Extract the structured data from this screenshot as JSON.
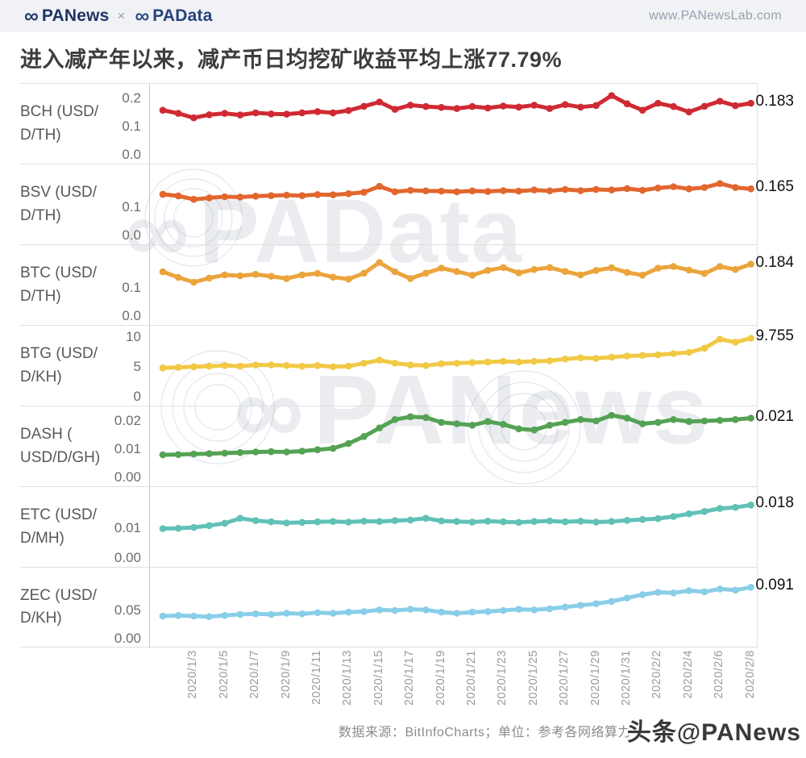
{
  "topbar": {
    "logo_panews": "PANews",
    "separator": "×",
    "logo_padata": "PAData",
    "url": "www.PANewsLab.com",
    "logo_icon": "infinity-icon"
  },
  "title": "进入减产年以来，减产币日均挖矿收益平均上涨77.79%",
  "footer": {
    "text": "数据来源：BitInfoCharts；单位：参考各网络算力"
  },
  "watermarks": {
    "padata": "PAData",
    "panews": "PANews",
    "toutiao": "头条@PANews"
  },
  "chart_data": {
    "type": "line",
    "title": "进入减产年以来，减产币日均挖矿收益平均上涨77.79%",
    "average_increase": "77.79%",
    "x_dates": [
      "2020/1/1",
      "2020/1/2",
      "2020/1/3",
      "2020/1/4",
      "2020/1/5",
      "2020/1/6",
      "2020/1/7",
      "2020/1/8",
      "2020/1/9",
      "2020/1/10",
      "2020/1/11",
      "2020/1/12",
      "2020/1/13",
      "2020/1/14",
      "2020/1/15",
      "2020/1/16",
      "2020/1/17",
      "2020/1/18",
      "2020/1/19",
      "2020/1/20",
      "2020/1/21",
      "2020/1/22",
      "2020/1/23",
      "2020/1/24",
      "2020/1/25",
      "2020/1/26",
      "2020/1/27",
      "2020/1/28",
      "2020/1/29",
      "2020/1/30",
      "2020/1/31",
      "2020/2/1",
      "2020/2/2",
      "2020/2/3",
      "2020/2/4",
      "2020/2/5",
      "2020/2/6",
      "2020/2/7",
      "2020/2/8"
    ],
    "x_tick_labels": [
      "2020/1/3",
      "2020/1/5",
      "2020/1/7",
      "2020/1/9",
      "2020/1/11",
      "2020/1/13",
      "2020/1/15",
      "2020/1/17",
      "2020/1/19",
      "2020/1/21",
      "2020/1/23",
      "2020/1/25",
      "2020/1/27",
      "2020/1/29",
      "2020/1/31",
      "2020/2/2",
      "2020/2/4",
      "2020/2/6",
      "2020/2/8"
    ],
    "series": [
      {
        "name": "BCH",
        "label": "BCH (USD/D/TH)",
        "label_lines": [
          "BCH (USD/",
          "D/TH)"
        ],
        "unit": "USD/D/TH",
        "color": "#cf2a33",
        "end_label": "0.183",
        "axis_ticks": [
          "0.2",
          "0.1",
          "0.0"
        ],
        "axis_max": 0.24,
        "values": [
          0.158,
          0.147,
          0.131,
          0.142,
          0.147,
          0.141,
          0.149,
          0.145,
          0.144,
          0.149,
          0.153,
          0.149,
          0.157,
          0.172,
          0.187,
          0.161,
          0.176,
          0.171,
          0.168,
          0.164,
          0.171,
          0.166,
          0.173,
          0.169,
          0.176,
          0.164,
          0.178,
          0.169,
          0.175,
          0.21,
          0.181,
          0.158,
          0.183,
          0.171,
          0.152,
          0.172,
          0.19,
          0.174,
          0.183
        ]
      },
      {
        "name": "BSV",
        "label": "BSV (USD/D/TH)",
        "label_lines": [
          "BSV (USD/",
          "D/TH)"
        ],
        "unit": "USD/D/TH",
        "color": "#e2662d",
        "end_label": "0.165",
        "axis_ticks": [
          "0.1",
          "0.0"
        ],
        "axis_max": 0.24,
        "values": [
          0.146,
          0.14,
          0.128,
          0.133,
          0.137,
          0.136,
          0.139,
          0.141,
          0.143,
          0.141,
          0.145,
          0.144,
          0.148,
          0.153,
          0.174,
          0.155,
          0.16,
          0.158,
          0.157,
          0.155,
          0.158,
          0.156,
          0.159,
          0.157,
          0.161,
          0.158,
          0.163,
          0.159,
          0.163,
          0.161,
          0.166,
          0.16,
          0.168,
          0.173,
          0.165,
          0.17,
          0.184,
          0.17,
          0.165
        ]
      },
      {
        "name": "BTC",
        "label": "BTC (USD/D/TH)",
        "label_lines": [
          "BTC (USD/",
          "D/TH)"
        ],
        "unit": "USD/D/TH",
        "color": "#eba43c",
        "end_label": "0.184",
        "axis_ticks": [
          "0.1",
          "0.0"
        ],
        "axis_max": 0.24,
        "values": [
          0.157,
          0.137,
          0.12,
          0.135,
          0.146,
          0.143,
          0.148,
          0.141,
          0.133,
          0.146,
          0.151,
          0.138,
          0.131,
          0.152,
          0.19,
          0.157,
          0.133,
          0.152,
          0.17,
          0.158,
          0.145,
          0.162,
          0.172,
          0.153,
          0.165,
          0.172,
          0.158,
          0.146,
          0.162,
          0.171,
          0.155,
          0.145,
          0.17,
          0.176,
          0.163,
          0.151,
          0.176,
          0.165,
          0.184
        ]
      },
      {
        "name": "BTG",
        "label": "BTG (USD/D/KH)",
        "label_lines": [
          "BTG (USD/",
          "D/KH)"
        ],
        "unit": "USD/D/KH",
        "color": "#f1c945",
        "end_label": "9.755",
        "axis_ticks": [
          "10",
          "5",
          "0"
        ],
        "axis_max": 11.3,
        "values": [
          4.8,
          4.9,
          5.0,
          5.1,
          5.2,
          5.1,
          5.3,
          5.3,
          5.2,
          5.1,
          5.2,
          5.0,
          5.1,
          5.6,
          6.1,
          5.6,
          5.3,
          5.2,
          5.5,
          5.6,
          5.7,
          5.8,
          5.9,
          5.8,
          5.9,
          6.0,
          6.3,
          6.5,
          6.4,
          6.6,
          6.8,
          6.9,
          7.0,
          7.2,
          7.4,
          8.1,
          9.6,
          9.1,
          9.755
        ]
      },
      {
        "name": "DASH",
        "label": "DASH (USD/D/GH)",
        "label_lines": [
          "DASH (",
          "USD/D/GH)"
        ],
        "unit": "USD/D/GH",
        "color": "#54a254",
        "end_label": "0.021",
        "axis_ticks": [
          "0.02",
          "0.01",
          "0.00"
        ],
        "axis_max": 0.024,
        "values": [
          0.008,
          0.0081,
          0.0083,
          0.0084,
          0.0086,
          0.0088,
          0.009,
          0.0091,
          0.009,
          0.0093,
          0.0098,
          0.0103,
          0.012,
          0.0145,
          0.0175,
          0.0205,
          0.0215,
          0.0212,
          0.0195,
          0.019,
          0.0185,
          0.0198,
          0.0188,
          0.0172,
          0.0168,
          0.0185,
          0.0195,
          0.0205,
          0.02,
          0.022,
          0.021,
          0.019,
          0.0195,
          0.0205,
          0.0198,
          0.02,
          0.0202,
          0.0205,
          0.021
        ]
      },
      {
        "name": "ETC",
        "label": "ETC (USD/D/MH)",
        "label_lines": [
          "ETC (USD/",
          "D/MH)"
        ],
        "unit": "USD/D/MH",
        "color": "#61c1b6",
        "end_label": "0.018",
        "axis_ticks": [
          "0.01",
          "0.00"
        ],
        "axis_max": 0.023,
        "values": [
          0.01,
          0.0101,
          0.0104,
          0.011,
          0.0118,
          0.0135,
          0.0127,
          0.0123,
          0.0119,
          0.0121,
          0.0123,
          0.0124,
          0.0122,
          0.0125,
          0.0124,
          0.0127,
          0.0129,
          0.0135,
          0.0126,
          0.0124,
          0.0122,
          0.0125,
          0.0123,
          0.0121,
          0.0124,
          0.0126,
          0.0123,
          0.0125,
          0.0122,
          0.0124,
          0.0128,
          0.0131,
          0.0134,
          0.0141,
          0.015,
          0.0158,
          0.0168,
          0.0172,
          0.018
        ]
      },
      {
        "name": "ZEC",
        "label": "ZEC (USD/D/KH)",
        "label_lines": [
          "ZEC (USD/",
          "D/KH)"
        ],
        "unit": "USD/D/KH",
        "color": "#89cee8",
        "end_label": "0.091",
        "axis_ticks": [
          "0.05",
          "0.00"
        ],
        "axis_max": 0.12,
        "values": [
          0.04,
          0.041,
          0.04,
          0.039,
          0.041,
          0.043,
          0.044,
          0.043,
          0.045,
          0.044,
          0.046,
          0.045,
          0.047,
          0.048,
          0.051,
          0.05,
          0.052,
          0.051,
          0.047,
          0.045,
          0.047,
          0.048,
          0.05,
          0.052,
          0.051,
          0.053,
          0.056,
          0.059,
          0.062,
          0.066,
          0.072,
          0.078,
          0.082,
          0.081,
          0.085,
          0.083,
          0.088,
          0.086,
          0.091
        ]
      }
    ]
  }
}
